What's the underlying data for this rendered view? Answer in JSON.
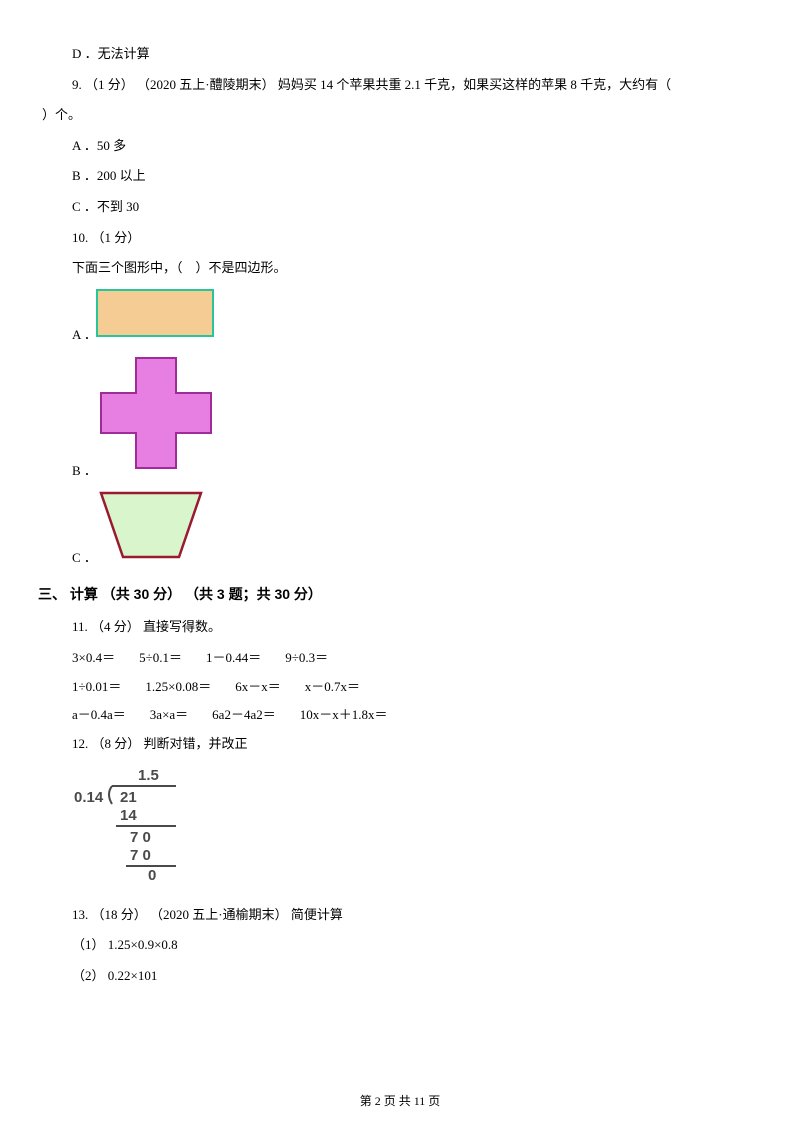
{
  "q8": {
    "optD": "D ．无法计算"
  },
  "q9": {
    "line1": "9.  （1 分） （2020 五上·醴陵期末） 妈妈买 14 个苹果共重 2.1 千克，如果买这样的苹果 8  千克，大约有（",
    "line2": "）个。",
    "optA": "A ．50 多",
    "optB": "B ．200 以上",
    "optC": "C ．不到 30"
  },
  "q10": {
    "head": "10.  （1 分）",
    "text": "下面三个图形中，（&nbsp;&nbsp;&nbsp;&nbsp;）不是四边形。",
    "labelA": "A ．",
    "labelB": "B ．",
    "labelC": "C ．",
    "rect": {
      "fill": "#f6cc95",
      "stroke": "#27c59a"
    },
    "plus": {
      "fill": "#e77ee1",
      "stroke": "#a02c99"
    },
    "trap": {
      "fill": "#d8f5cb",
      "stroke": "#9a1a2f"
    }
  },
  "section3": "三、 计算 （共 30 分） （共 3 题；共 30 分）",
  "q11": {
    "head": "11.  （4 分） 直接写得数。",
    "r1": [
      "3×0.4＝",
      "5÷0.1＝",
      "1－0.44＝",
      "9÷0.3＝"
    ],
    "r2": [
      "1÷0.01＝",
      "1.25×0.08＝",
      "6x－x＝",
      "x－0.7x＝"
    ],
    "r3": [
      "a－0.4a＝",
      "3a×a＝",
      "6a2－4a2＝",
      "10x－x＋1.8x＝"
    ]
  },
  "q12": {
    "head": "12.  （8 分） 判断对错，并改正",
    "div": {
      "quotient": "1.5",
      "divisor": "0.14",
      "dividend": "21",
      "l1": "14",
      "l2": "7 0",
      "l3": "7 0",
      "l4": "0",
      "font": "Arial, sans-serif",
      "color": "#4a4a4a"
    }
  },
  "q13": {
    "head": "13.  （18 分） （2020 五上·通榆期末） 简便计算",
    "p1": "（1）  1.25×0.9×0.8",
    "p2": "（2）  0.22×101"
  },
  "footer": "第  2  页  共  11  页"
}
